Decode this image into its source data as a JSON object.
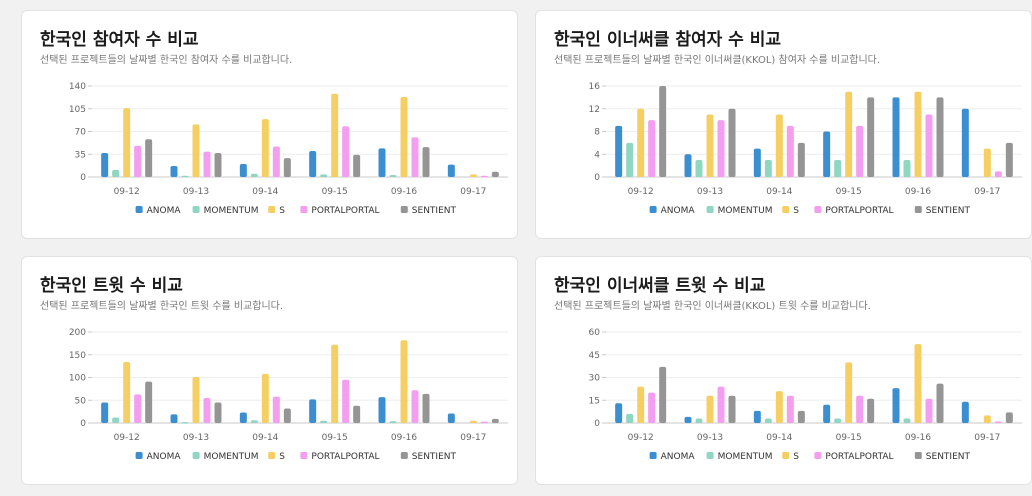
{
  "colors": {
    "ANOMA": "#3b8ed0",
    "MOMENTUM": "#8fd6c3",
    "S": "#f6cf63",
    "PORTALPORTAL": "#f49ef0",
    "SENTIENT": "#959595"
  },
  "cards": [
    {
      "title": "한국인 참여자 수 비교",
      "subtitle": "선택된 프로젝트들의 날짜별 한국인 참여자 수를 비교합니다."
    },
    {
      "title": "한국인 이너써클 참여자 수 비교",
      "subtitle": "선택된 프로젝트들의 날짜별 한국인 이너써클(KKOL) 참여자 수를 비교합니다."
    },
    {
      "title": "한국인 트윗 수 비교",
      "subtitle": "선택된 프로젝트들의 날짜별 한국인 트윗 수를 비교합니다."
    },
    {
      "title": "한국인 이너써클 트윗 수 비교",
      "subtitle": "선택된 프로젝트들의 날짜별 한국인 이너써클(KKOL) 트윗 수를 비교합니다."
    }
  ],
  "chart_data": [
    {
      "type": "bar",
      "categories": [
        "09-12",
        "09-13",
        "09-14",
        "09-15",
        "09-16",
        "09-17"
      ],
      "yticks": [
        0,
        35,
        70,
        105,
        140
      ],
      "ylim": [
        0,
        140
      ],
      "legend_position": "bottom",
      "series": [
        {
          "name": "ANOMA",
          "values": [
            37,
            17,
            20,
            40,
            44,
            19
          ]
        },
        {
          "name": "MOMENTUM",
          "values": [
            11,
            2,
            5,
            4,
            3,
            0
          ]
        },
        {
          "name": "S",
          "values": [
            106,
            81,
            89,
            128,
            123,
            4
          ]
        },
        {
          "name": "PORTALPORTAL",
          "values": [
            48,
            39,
            47,
            78,
            61,
            2
          ]
        },
        {
          "name": "SENTIENT",
          "values": [
            58,
            37,
            29,
            34,
            46,
            8
          ]
        }
      ]
    },
    {
      "type": "bar",
      "categories": [
        "09-12",
        "09-13",
        "09-14",
        "09-15",
        "09-16",
        "09-17"
      ],
      "yticks": [
        0,
        4,
        8,
        12,
        16
      ],
      "ylim": [
        0,
        16
      ],
      "legend_position": "bottom",
      "series": [
        {
          "name": "ANOMA",
          "values": [
            9,
            4,
            5,
            8,
            14,
            12
          ]
        },
        {
          "name": "MOMENTUM",
          "values": [
            6,
            3,
            3,
            3,
            3,
            0
          ]
        },
        {
          "name": "S",
          "values": [
            12,
            11,
            11,
            15,
            15,
            5
          ]
        },
        {
          "name": "PORTALPORTAL",
          "values": [
            10,
            10,
            9,
            9,
            11,
            1
          ]
        },
        {
          "name": "SENTIENT",
          "values": [
            16,
            12,
            6,
            14,
            14,
            6
          ]
        }
      ]
    },
    {
      "type": "bar",
      "categories": [
        "09-12",
        "09-13",
        "09-14",
        "09-15",
        "09-16",
        "09-17"
      ],
      "yticks": [
        0,
        50,
        100,
        150,
        200
      ],
      "ylim": [
        0,
        200
      ],
      "legend_position": "bottom",
      "series": [
        {
          "name": "ANOMA",
          "values": [
            45,
            19,
            23,
            52,
            57,
            21
          ]
        },
        {
          "name": "MOMENTUM",
          "values": [
            12,
            2,
            6,
            5,
            4,
            0
          ]
        },
        {
          "name": "S",
          "values": [
            134,
            101,
            108,
            172,
            182,
            5
          ]
        },
        {
          "name": "PORTALPORTAL",
          "values": [
            63,
            55,
            58,
            95,
            72,
            3
          ]
        },
        {
          "name": "SENTIENT",
          "values": [
            91,
            45,
            32,
            38,
            64,
            9
          ]
        }
      ]
    },
    {
      "type": "bar",
      "categories": [
        "09-12",
        "09-13",
        "09-14",
        "09-15",
        "09-16",
        "09-17"
      ],
      "yticks": [
        0,
        15,
        30,
        45,
        60
      ],
      "ylim": [
        0,
        60
      ],
      "legend_position": "bottom",
      "series": [
        {
          "name": "ANOMA",
          "values": [
            13,
            4,
            8,
            12,
            23,
            14
          ]
        },
        {
          "name": "MOMENTUM",
          "values": [
            6,
            3,
            3,
            3,
            3,
            0
          ]
        },
        {
          "name": "S",
          "values": [
            24,
            18,
            21,
            40,
            52,
            5
          ]
        },
        {
          "name": "PORTALPORTAL",
          "values": [
            20,
            24,
            18,
            18,
            16,
            1
          ]
        },
        {
          "name": "SENTIENT",
          "values": [
            37,
            18,
            8,
            16,
            26,
            7
          ]
        }
      ]
    }
  ]
}
